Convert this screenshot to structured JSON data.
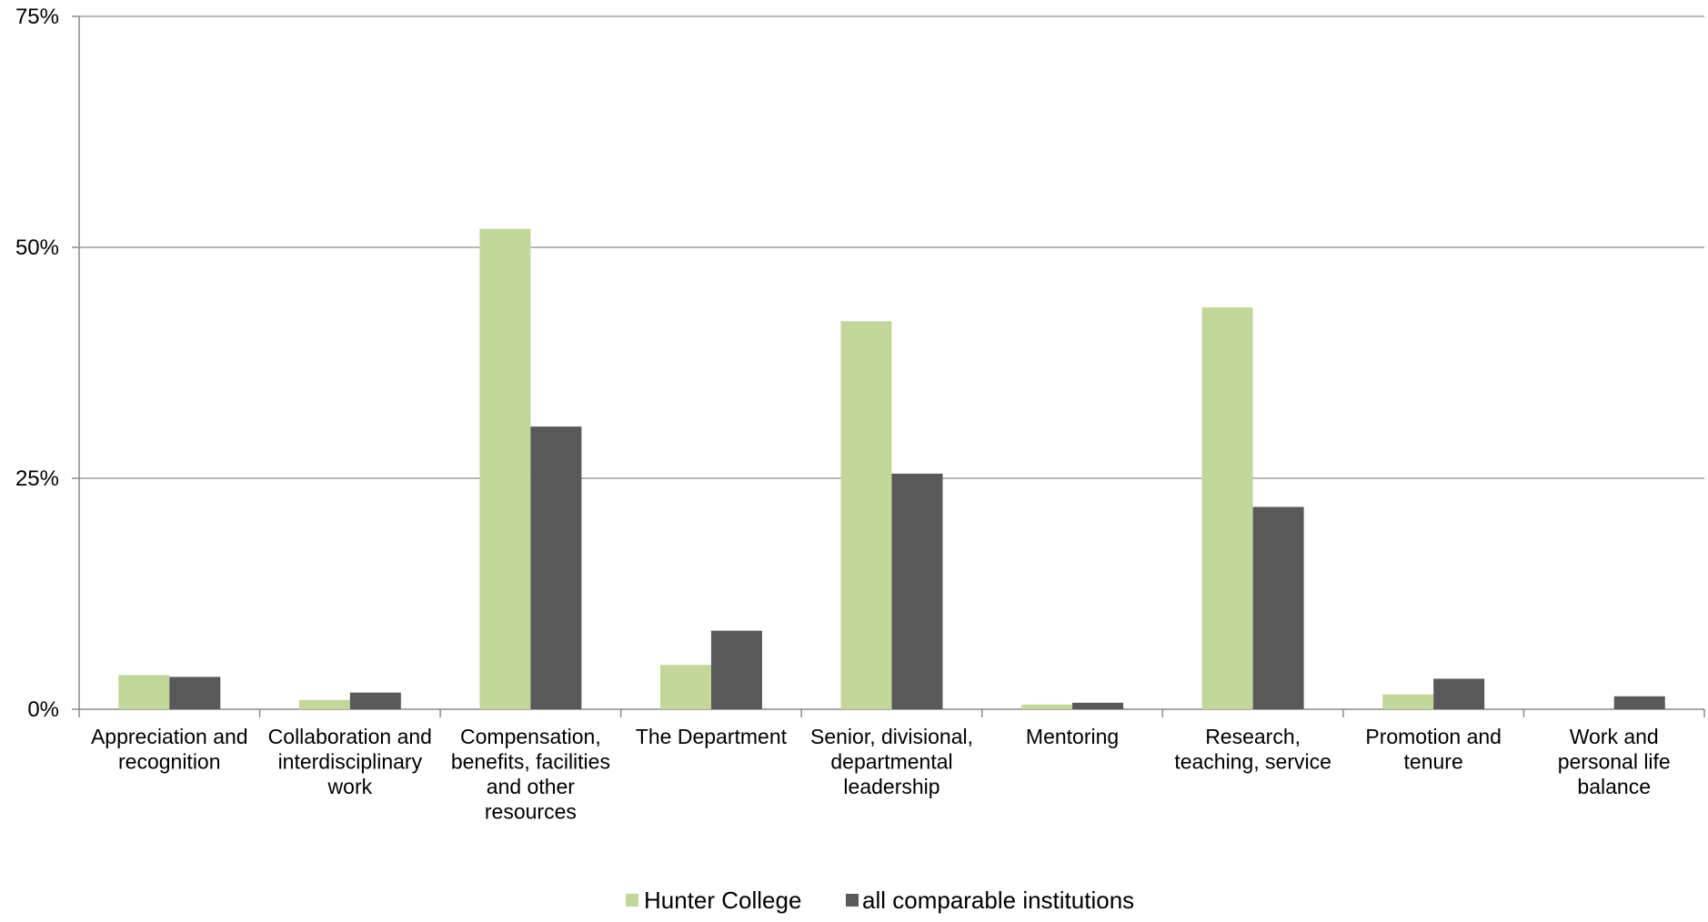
{
  "chart_data": {
    "type": "bar",
    "categories": [
      [
        "Appreciation and",
        "recognition"
      ],
      [
        "Collaboration and",
        "interdisciplinary",
        "work"
      ],
      [
        "Compensation,",
        "benefits, facilities",
        "and other",
        "resources"
      ],
      [
        "The Department"
      ],
      [
        "Senior, divisional,",
        "departmental",
        "leadership"
      ],
      [
        "Mentoring"
      ],
      [
        "Research,",
        "teaching, service"
      ],
      [
        "Promotion and",
        "tenure"
      ],
      [
        "Work and",
        "personal life",
        "balance"
      ]
    ],
    "series": [
      {
        "name": "Hunter College",
        "color": "#c4d79b",
        "values": [
          3.7,
          1.0,
          52.0,
          4.8,
          42.0,
          0.5,
          43.5,
          1.6,
          0
        ]
      },
      {
        "name": "all comparable institutions",
        "color": "#595959",
        "values": [
          3.5,
          1.8,
          30.6,
          8.5,
          25.5,
          0.7,
          21.9,
          3.3,
          1.4
        ]
      }
    ],
    "ylim": [
      0,
      75
    ],
    "yticks": [
      0,
      25,
      50,
      75
    ],
    "ytick_labels": [
      "0%",
      "25%",
      "50%",
      "75%"
    ],
    "grid": true,
    "legend_position": "bottom"
  }
}
